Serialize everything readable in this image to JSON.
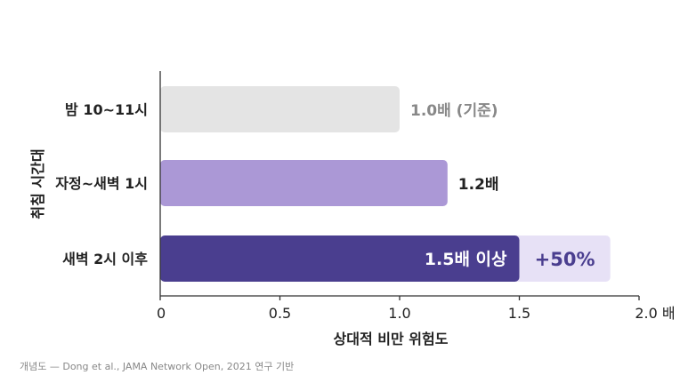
{
  "chart_data": {
    "type": "bar",
    "orientation": "horizontal",
    "categories": [
      "밤 10~11시",
      "자정~새벽 1시",
      "새벽 2시 이후"
    ],
    "values": [
      1.0,
      1.2,
      1.5
    ],
    "extension": {
      "category": "새벽 2시 이후",
      "from": 1.5,
      "to": 1.88,
      "label": "+50%"
    },
    "data_labels": [
      "1.0배 (기준)",
      "1.2배",
      "1.5배 이상"
    ],
    "xlabel": "상대적 비만 위험도",
    "ylabel": "취침 시간대",
    "xlim": [
      0,
      2.0
    ],
    "ticks": [
      0,
      0.5,
      1.0,
      1.5,
      2.0
    ],
    "tick_labels": [
      "0",
      "0.5",
      "1.0",
      "1.5",
      "2.0 배"
    ],
    "grid": false,
    "colors": {
      "bar_1": "#e4e4e4",
      "bar_2": "#ab98d6",
      "bar_3": "#4a3e8f",
      "extension": "#e7e1f6",
      "axis": "#333333",
      "label_gray": "#888888"
    }
  },
  "footnote": "개념도 — Dong et al., JAMA Network Open, 2021 연구 기반"
}
